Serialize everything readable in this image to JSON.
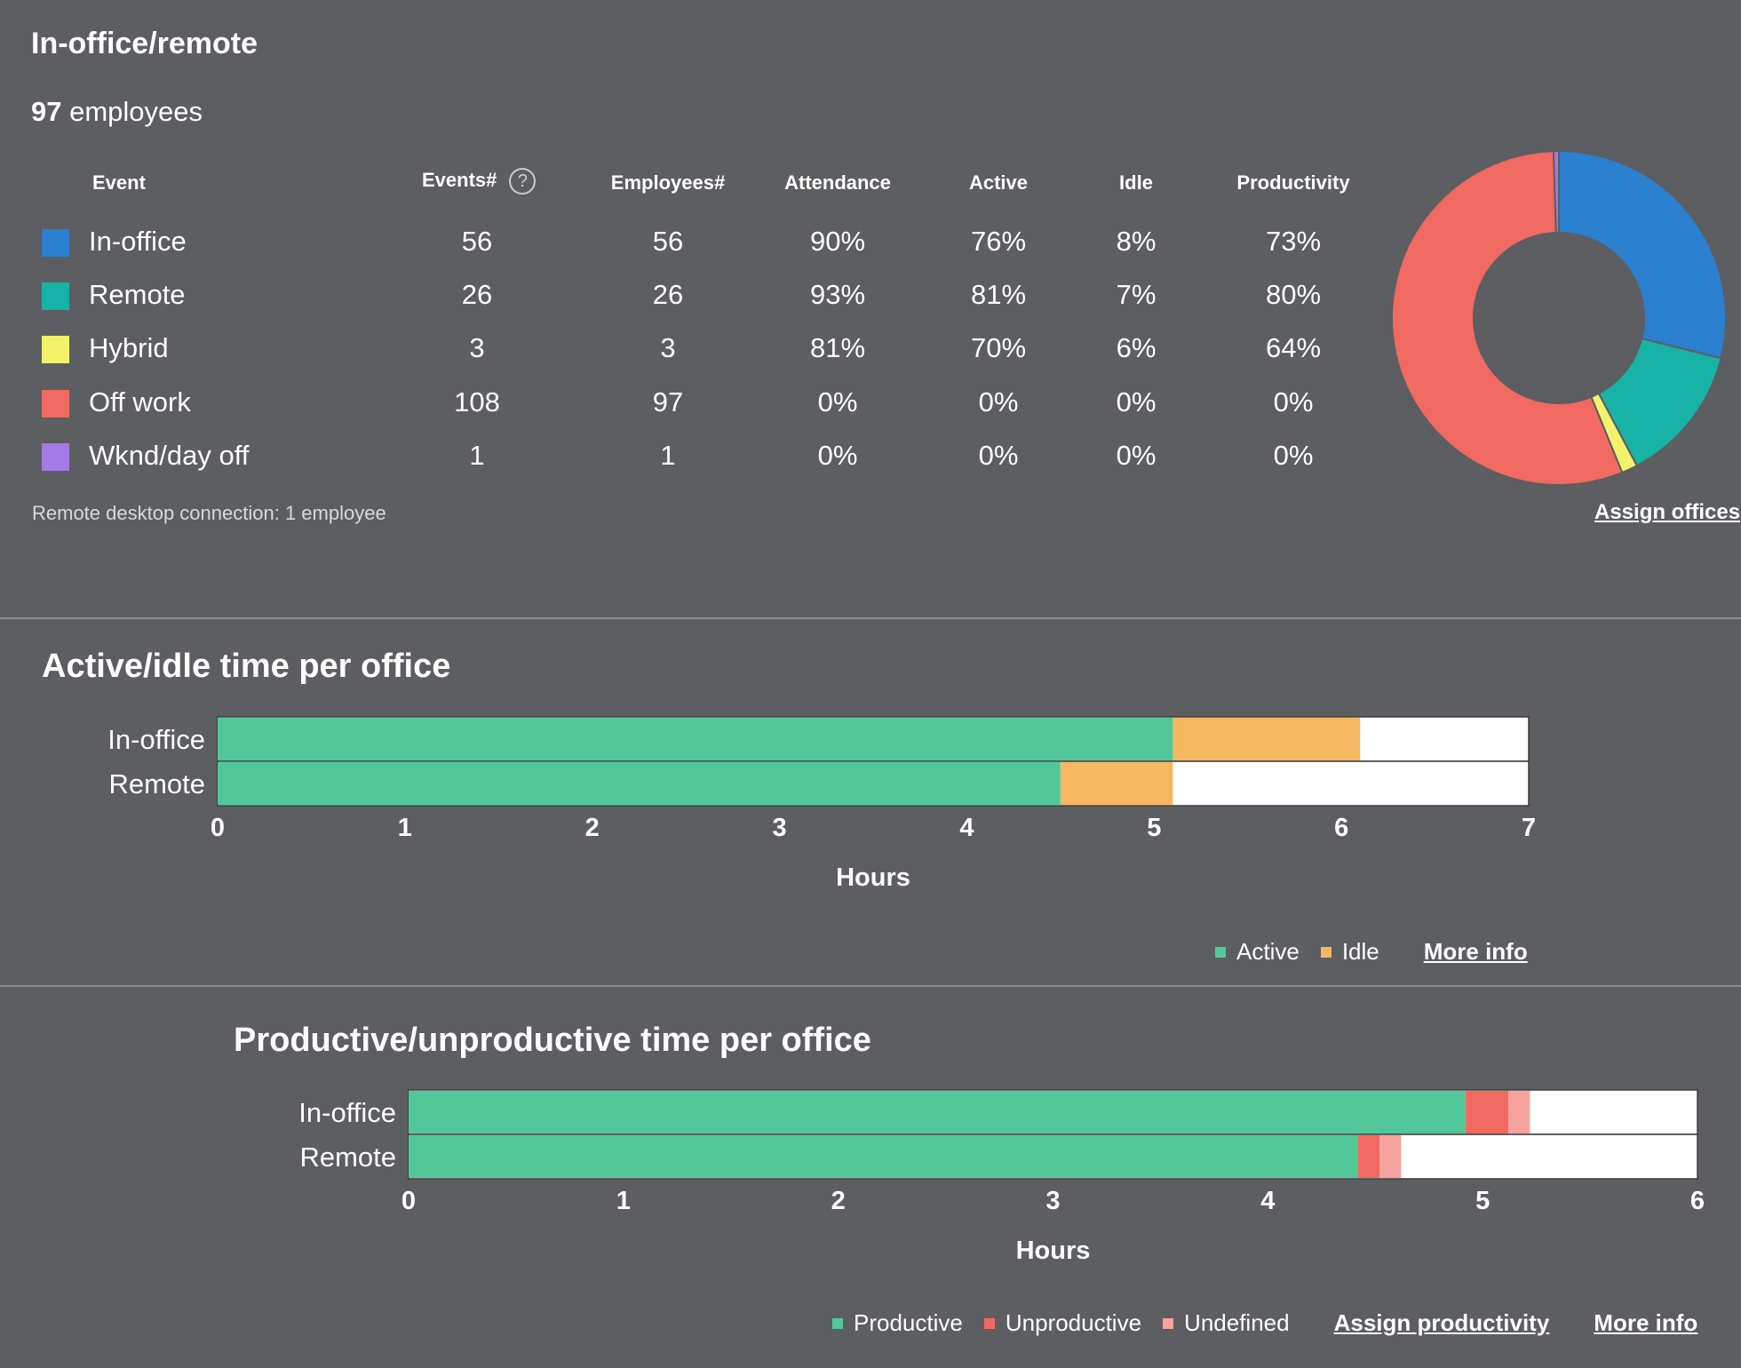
{
  "in_office_remote": {
    "title": "In-office/remote",
    "employee_count": "97",
    "employee_label": "employees",
    "columns": {
      "event": "Event",
      "events": "Events#",
      "help_icon": "?",
      "employees": "Employees#",
      "attendance": "Attendance",
      "active": "Active",
      "idle": "Idle",
      "productivity": "Productivity"
    },
    "rows": [
      {
        "label": "In-office",
        "color": "#2b7fcf",
        "events": "56",
        "employees": "56",
        "attendance": "90%",
        "active": "76%",
        "idle": "8%",
        "productivity": "73%"
      },
      {
        "label": "Remote",
        "color": "#16b3a6",
        "events": "26",
        "employees": "26",
        "attendance": "93%",
        "active": "81%",
        "idle": "7%",
        "productivity": "80%"
      },
      {
        "label": "Hybrid",
        "color": "#f2f26b",
        "events": "3",
        "employees": "3",
        "attendance": "81%",
        "active": "70%",
        "idle": "6%",
        "productivity": "64%"
      },
      {
        "label": "Off work",
        "color": "#f06a62",
        "events": "108",
        "employees": "97",
        "attendance": "0%",
        "active": "0%",
        "idle": "0%",
        "productivity": "0%"
      },
      {
        "label": "Wknd/day off",
        "color": "#a47ae6",
        "events": "1",
        "employees": "1",
        "attendance": "0%",
        "active": "0%",
        "idle": "0%",
        "productivity": "0%"
      }
    ],
    "footnote": "Remote desktop connection: 1 employee",
    "assign_offices_link": "Assign offices"
  },
  "active_idle": {
    "title": "Active/idle time per office",
    "legend_active": "Active",
    "legend_idle": "Idle",
    "more_info_link": "More info",
    "active_color": "#52c89a",
    "idle_color": "#f5b860",
    "unused_color": "#ffffff"
  },
  "productive_unproductive": {
    "title": "Productive/unproductive time per office",
    "legend_productive": "Productive",
    "legend_unproductive": "Unproductive",
    "legend_undefined": "Undefined",
    "assign_productivity_link": "Assign productivity",
    "more_info_link": "More info",
    "productive_color": "#52c89a",
    "unproductive_color": "#f06a62",
    "undefined_color": "#f7a29c",
    "unused_color": "#ffffff"
  },
  "chart_data": [
    {
      "type": "pie",
      "title": "",
      "categories": [
        "In-office",
        "Remote",
        "Hybrid",
        "Off work",
        "Wknd/day off"
      ],
      "values": [
        56,
        26,
        3,
        108,
        1
      ],
      "colors": [
        "#2b7fcf",
        "#16b3a6",
        "#f2f26b",
        "#f06a62",
        "#a47ae6"
      ]
    },
    {
      "type": "bar",
      "orientation": "horizontal",
      "stacked": true,
      "title": "Active/idle time per office",
      "categories": [
        "In-office",
        "Remote"
      ],
      "series": [
        {
          "name": "Active",
          "values": [
            5.1,
            4.5
          ],
          "color": "#52c89a"
        },
        {
          "name": "Idle",
          "values": [
            1.0,
            0.6
          ],
          "color": "#f5b860"
        }
      ],
      "xlabel": "Hours",
      "ylabel": "",
      "xlim": [
        0,
        7
      ],
      "xticks": [
        "0",
        "1",
        "2",
        "3",
        "4",
        "5",
        "6",
        "7"
      ]
    },
    {
      "type": "bar",
      "orientation": "horizontal",
      "stacked": true,
      "title": "Productive/unproductive time per office",
      "categories": [
        "In-office",
        "Remote"
      ],
      "series": [
        {
          "name": "Productive",
          "values": [
            4.92,
            4.42
          ],
          "color": "#52c89a"
        },
        {
          "name": "Unproductive",
          "values": [
            0.2,
            0.1
          ],
          "color": "#f06a62"
        },
        {
          "name": "Undefined",
          "values": [
            0.1,
            0.1
          ],
          "color": "#f7a29c"
        }
      ],
      "xlabel": "Hours",
      "ylabel": "",
      "xlim": [
        0,
        6
      ],
      "xticks": [
        "0",
        "1",
        "2",
        "3",
        "4",
        "5",
        "6"
      ]
    }
  ]
}
